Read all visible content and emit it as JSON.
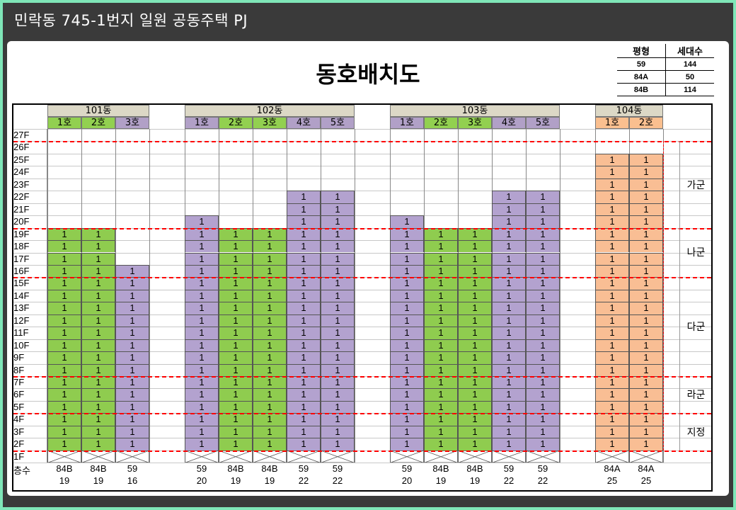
{
  "header": {
    "title": "민락동 745-1번지 일원 공동주택 PJ"
  },
  "doc_title": "동호배치도",
  "legend": {
    "headers": [
      "평형",
      "세대수"
    ],
    "rows": [
      {
        "type": "59",
        "count": "144"
      },
      {
        "type": "84A",
        "count": "50"
      },
      {
        "type": "84B",
        "count": "114"
      }
    ]
  },
  "colors": {
    "84B": "#8fcc4f",
    "59": "#b3a2cf",
    "84A": "#f9be94",
    "building_header": "#dcd8c6",
    "unit_header_84B": "#92d050",
    "unit_header_59": "#b1a0c7",
    "unit_header_84A": "#fabf8f",
    "red_dash": "#ff0000"
  },
  "floors": [
    "27F",
    "26F",
    "25F",
    "24F",
    "23F",
    "22F",
    "21F",
    "20F",
    "19F",
    "18F",
    "17F",
    "16F",
    "15F",
    "14F",
    "13F",
    "12F",
    "11F",
    "10F",
    "9F",
    "8F",
    "7F",
    "6F",
    "5F",
    "4F",
    "3F",
    "2F",
    "1F"
  ],
  "totals_label": "층수",
  "cell_value": "1",
  "buildings": [
    {
      "name": "101동",
      "units": [
        {
          "label": "1호",
          "type": "84B",
          "floors": 19
        },
        {
          "label": "2호",
          "type": "84B",
          "floors": 19
        },
        {
          "label": "3호",
          "type": "59",
          "floors": 16
        }
      ]
    },
    {
      "name": "102동",
      "units": [
        {
          "label": "1호",
          "type": "59",
          "floors": 20
        },
        {
          "label": "2호",
          "type": "84B",
          "floors": 19
        },
        {
          "label": "3호",
          "type": "84B",
          "floors": 19
        },
        {
          "label": "4호",
          "type": "59",
          "floors": 22
        },
        {
          "label": "5호",
          "type": "59",
          "floors": 22
        }
      ]
    },
    {
      "name": "103동",
      "units": [
        {
          "label": "1호",
          "type": "59",
          "floors": 20
        },
        {
          "label": "2호",
          "type": "84B",
          "floors": 19
        },
        {
          "label": "3호",
          "type": "84B",
          "floors": 19
        },
        {
          "label": "4호",
          "type": "59",
          "floors": 22
        },
        {
          "label": "5호",
          "type": "59",
          "floors": 22
        }
      ]
    },
    {
      "name": "104동",
      "units": [
        {
          "label": "1호",
          "type": "84A",
          "floors": 25
        },
        {
          "label": "2호",
          "type": "84A",
          "floors": 25
        }
      ]
    }
  ],
  "groups": [
    {
      "label": "가군",
      "from_floor": 26,
      "to_floor": 20
    },
    {
      "label": "나군",
      "from_floor": 19,
      "to_floor": 16
    },
    {
      "label": "다군",
      "from_floor": 15,
      "to_floor": 8
    },
    {
      "label": "라군",
      "from_floor": 7,
      "to_floor": 5
    },
    {
      "label": "지정",
      "from_floor": 4,
      "to_floor": 2
    }
  ]
}
